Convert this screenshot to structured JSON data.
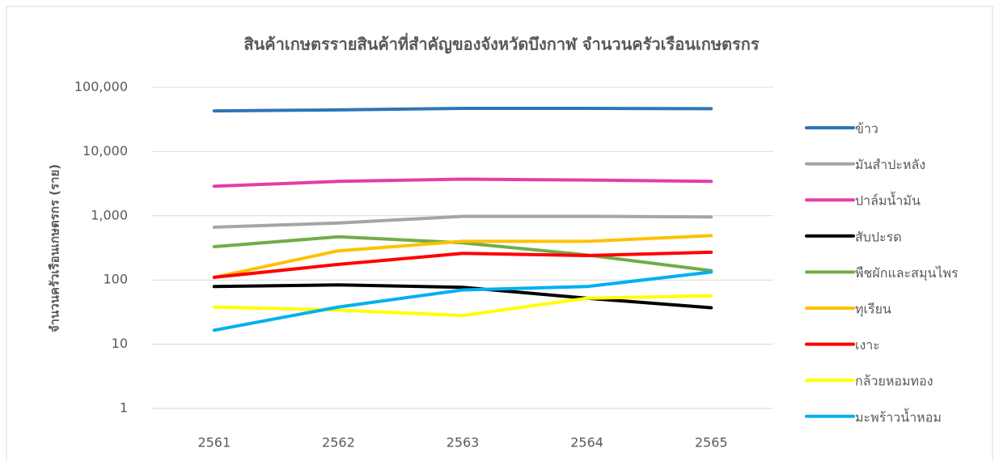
{
  "chart_data": {
    "type": "line",
    "title": "สินค้าเกษตรรายสินค้าที่สำคัญของจังหวัดบึงกาฬ จำนวนครัวเรือนเกษตรกร",
    "y_label": "จำนวนครัวเรือนเกษตรกร   (ราย)",
    "categories": [
      "2561",
      "2562",
      "2563",
      "2564",
      "2565"
    ],
    "log_scale": true,
    "grid": true,
    "legend": "right",
    "ylim": [
      1,
      100000
    ],
    "yticks": [
      1,
      10,
      100,
      {
        "value": 1000,
        "label": "1,000"
      },
      {
        "value": 10000,
        "label": "10,000"
      },
      {
        "value": 100000,
        "label": "100,000"
      }
    ],
    "series": [
      {
        "name": "ข้าว",
        "color": "#2e75b6",
        "values": [
          43000,
          44500,
          47000,
          47000,
          46500
        ]
      },
      {
        "name": "มันสำปะหลัง",
        "color": "#a5a5a5",
        "values": [
          665,
          770,
          980,
          980,
          960
        ]
      },
      {
        "name": "ปาล์มน้ำมัน",
        "color": "#e23ea9",
        "values": [
          2880,
          3430,
          3720,
          3600,
          3430
        ]
      },
      {
        "name": "สับปะรด",
        "color": "#000000",
        "values": [
          79,
          84,
          77,
          52,
          37
        ]
      },
      {
        "name": "พืชผักและสมุนไพร",
        "color": "#70ad47",
        "values": [
          330,
          470,
          380,
          245,
          140
        ]
      },
      {
        "name": "ทุเรียน",
        "color": "#ffc000",
        "values": [
          110,
          285,
          400,
          400,
          490
        ]
      },
      {
        "name": "เงาะ",
        "color": "#ff0000",
        "values": [
          110,
          175,
          260,
          240,
          270
        ]
      },
      {
        "name": "กล้วยหอมทอง",
        "color": "#ffff00",
        "values": [
          38,
          34,
          28,
          52,
          57
        ]
      },
      {
        "name": "มะพร้าวน้ำหอม",
        "color": "#00b0f0",
        "values": [
          16.5,
          38,
          70,
          79,
          133
        ]
      }
    ]
  }
}
